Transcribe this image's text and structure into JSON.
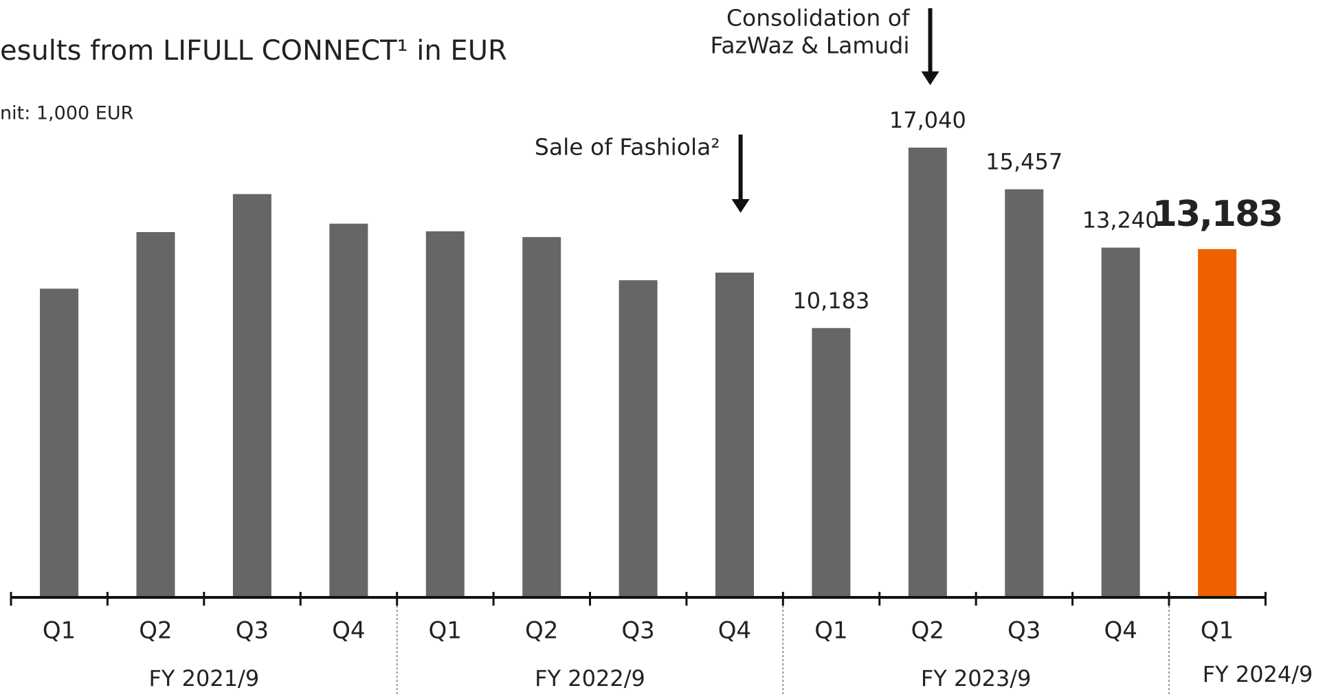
{
  "chart_data": {
    "type": "bar",
    "title": "esults from LIFULL CONNECT¹ in EUR",
    "subtitle": "nit: 1,000 EUR",
    "categories": [
      "Q1",
      "Q2",
      "Q3",
      "Q4",
      "Q1",
      "Q2",
      "Q3",
      "Q4",
      "Q1",
      "Q2",
      "Q3",
      "Q4",
      "Q1"
    ],
    "group_labels": [
      "FY 2021/9",
      "FY 2022/9",
      "FY 2023/9",
      "FY 2024/9"
    ],
    "values": [
      11680,
      13830,
      15275,
      14150,
      13860,
      13640,
      12000,
      12290,
      10183,
      17040,
      15457,
      13240,
      13183
    ],
    "value_labels": [
      null,
      null,
      null,
      null,
      null,
      null,
      null,
      null,
      "10,183",
      "17,040",
      "15,457",
      "13,240",
      "13,183"
    ],
    "colors": [
      "#666666",
      "#666666",
      "#666666",
      "#666666",
      "#666666",
      "#666666",
      "#666666",
      "#666666",
      "#666666",
      "#666666",
      "#666666",
      "#666666",
      "#ee6100"
    ],
    "ylim": [
      0,
      22650
    ],
    "annotations": [
      {
        "lines": [
          "Sale of Fashiola²"
        ],
        "category_index": 7
      },
      {
        "lines": [
          "Consolidation of",
          "FazWaz & Lamudi"
        ],
        "category_index": 9
      }
    ]
  }
}
